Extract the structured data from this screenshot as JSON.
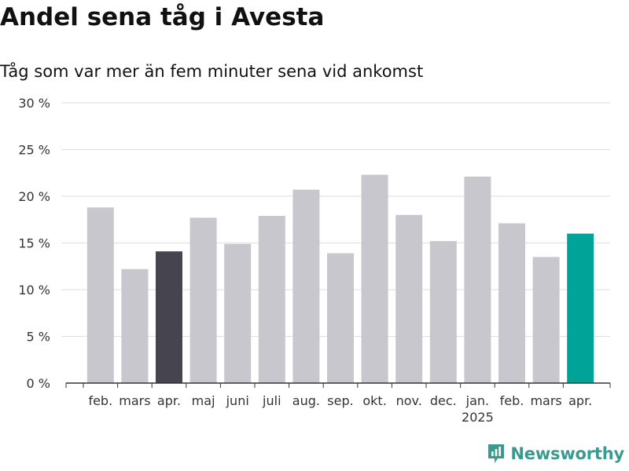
{
  "title": "Andel sena tåg i Avesta",
  "subtitle": "Tåg som var mer än fem minuter sena vid ankomst",
  "brand": "Newsworthy",
  "colors": {
    "bar": "#c8c7cd",
    "bar_dark": "#45444f",
    "bar_current": "#00a398",
    "grid": "#dedede",
    "brand": "#3a9a90"
  },
  "chart_data": {
    "type": "bar",
    "categories": [
      "feb.",
      "mars",
      "apr.",
      "maj",
      "juni",
      "juli",
      "aug.",
      "sep.",
      "okt.",
      "nov.",
      "dec.",
      "jan.",
      "feb.",
      "mars",
      "apr."
    ],
    "sublabels": [
      "",
      "",
      "",
      "",
      "",
      "",
      "",
      "",
      "",
      "",
      "",
      "2025",
      "",
      "",
      ""
    ],
    "values": [
      18.8,
      12.2,
      14.1,
      17.7,
      14.9,
      17.9,
      20.7,
      13.9,
      22.3,
      18.0,
      15.2,
      22.1,
      17.1,
      13.5,
      16.0
    ],
    "highlight": [
      "",
      "",
      "dark",
      "",
      "",
      "",
      "",
      "",
      "",
      "",
      "",
      "",
      "",
      "",
      "current"
    ],
    "ylim": [
      0,
      30
    ],
    "yticks": [
      0,
      5,
      10,
      15,
      20,
      25,
      30
    ],
    "ytick_labels": [
      "0 %",
      "5 %",
      "10 %",
      "15 %",
      "20 %",
      "25 %",
      "30 %"
    ],
    "xlabel": "",
    "ylabel": "",
    "grid": true
  }
}
